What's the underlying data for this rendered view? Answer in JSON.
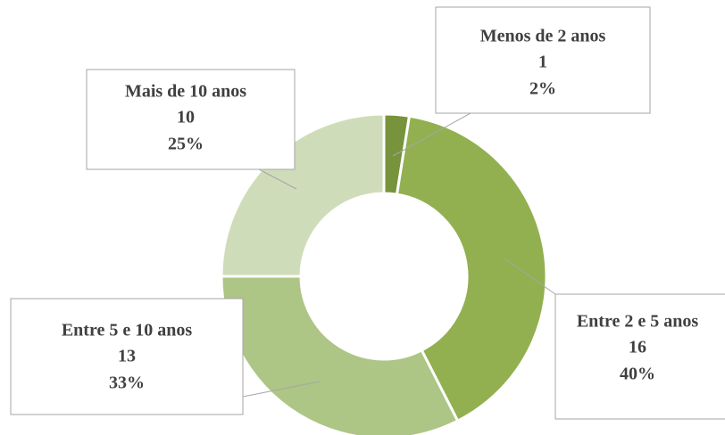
{
  "chart_data": {
    "type": "donut",
    "categories": [
      "Menos de 2 anos",
      "Entre 2 e 5 anos",
      "Entre 5 e 10 anos",
      "Mais de 10 anos"
    ],
    "values": [
      1,
      16,
      13,
      10
    ],
    "percentage_labels": [
      "2%",
      "40%",
      "33%",
      "25%"
    ],
    "colors": [
      "#77933c",
      "#92b050",
      "#adc585",
      "#cfdcb9"
    ]
  }
}
